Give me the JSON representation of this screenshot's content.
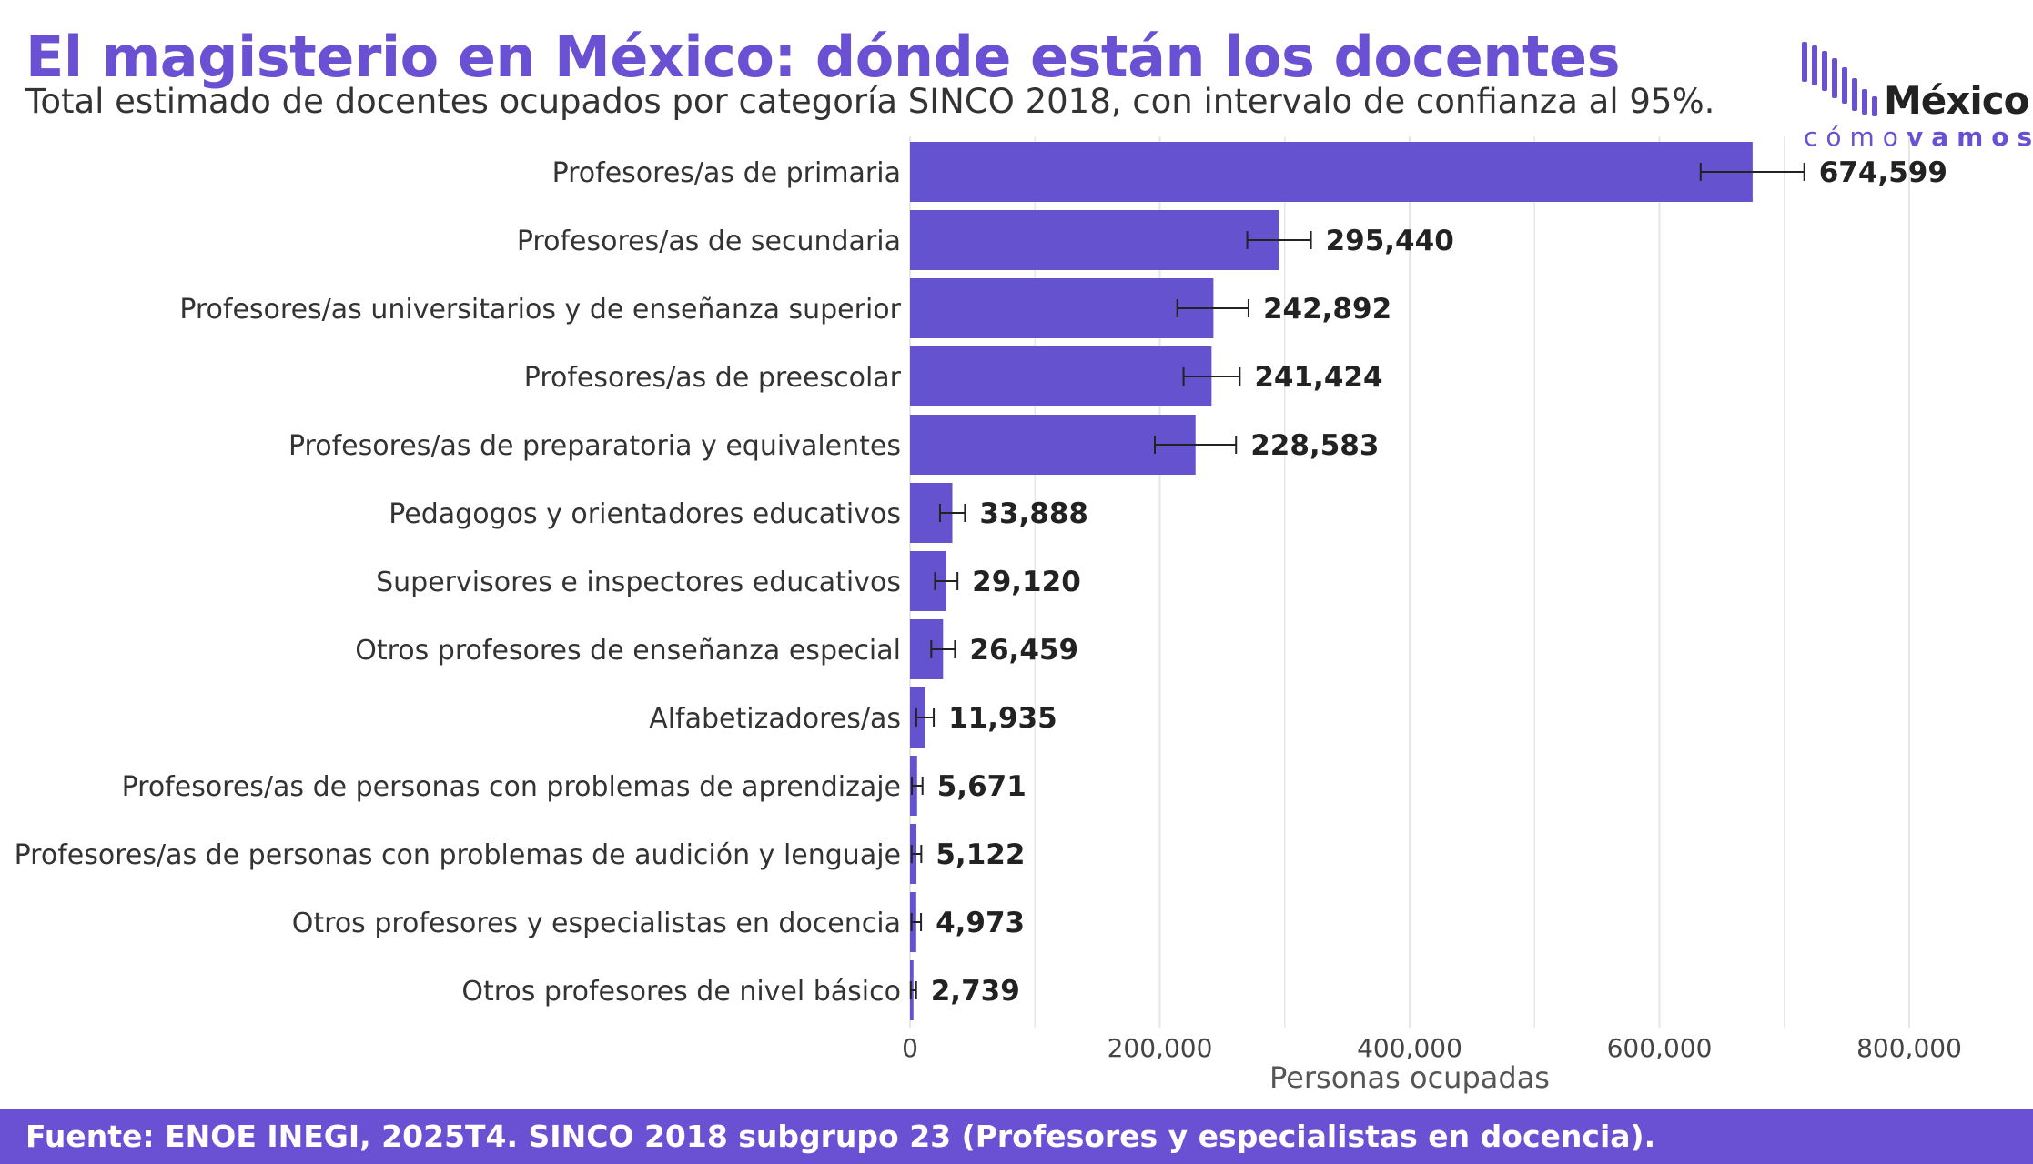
{
  "header": {
    "title": "El magisterio en México: dónde están los docentes",
    "subtitle": "Total estimado de docentes ocupados por categoría SINCO 2018, con intervalo de confianza al 95%."
  },
  "logo": {
    "word_main": "México",
    "word_sub_light": "cómo",
    "word_sub_bold": "vamos",
    "color": "#6a50d3"
  },
  "footer": {
    "source": "Fuente: ENOE INEGI, 2025T4. SINCO 2018 subgrupo 23 (Profesores y especialistas en docencia)."
  },
  "colors": {
    "bar": "#6552cf",
    "accent": "#6a50d3",
    "grid": "#e6e6e6",
    "text": "#333333"
  },
  "chart_data": {
    "type": "bar",
    "orientation": "horizontal",
    "xlabel": "Personas ocupadas",
    "xlim": [
      0,
      800000
    ],
    "xticks": [
      0,
      200000,
      400000,
      600000,
      800000
    ],
    "xtick_labels": [
      "0",
      "200,000",
      "400,000",
      "600,000",
      "800,000"
    ],
    "grid": true,
    "categories": [
      "Profesores/as de primaria",
      "Profesores/as de secundaria",
      "Profesores/as universitarios y de enseñanza superior",
      "Profesores/as de preescolar",
      "Profesores/as de preparatoria y equivalentes",
      "Pedagogos y orientadores educativos",
      "Supervisores e inspectores educativos",
      "Otros profesores de enseñanza especial",
      "Alfabetizadores/as",
      "Profesores/as de personas con problemas de aprendizaje",
      "Profesores/as de personas con problemas de audición y lenguaje",
      "Otros profesores y especialistas en docencia",
      "Otros profesores de nivel básico"
    ],
    "values": [
      674599,
      295440,
      242892,
      241424,
      228583,
      33888,
      29120,
      26459,
      11935,
      5671,
      5122,
      4973,
      2739
    ],
    "value_labels": [
      "674,599",
      "295,440",
      "242,892",
      "241,424",
      "228,583",
      "33,888",
      "29,120",
      "26,459",
      "11,935",
      "5,671",
      "5,122",
      "4,973",
      "2,739"
    ],
    "ci_low": [
      633000,
      270000,
      214000,
      219000,
      196000,
      24000,
      20000,
      17000,
      5000,
      1500,
      1300,
      1200,
      600
    ],
    "ci_high": [
      716000,
      321000,
      271000,
      264000,
      261000,
      44000,
      38000,
      36000,
      19000,
      10000,
      9000,
      8800,
      4900
    ]
  }
}
